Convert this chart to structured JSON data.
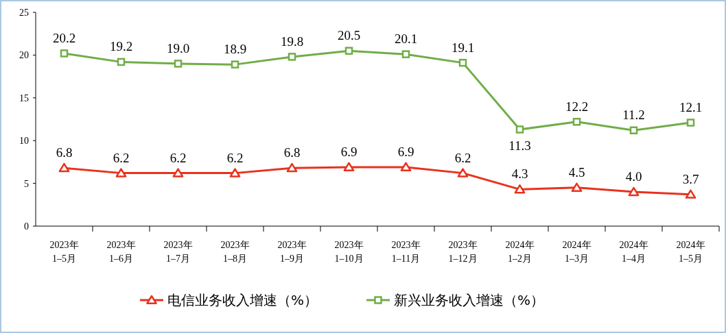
{
  "chart_data": {
    "type": "line",
    "categories": [
      "2023年\n1–5月",
      "2023年\n1–6月",
      "2023年\n1–7月",
      "2023年\n1–8月",
      "2023年\n1–9月",
      "2023年\n1–10月",
      "2023年\n1–11月",
      "2023年\n1–12月",
      "2024年\n1–2月",
      "2024年\n1–3月",
      "2024年\n1–4月",
      "2024年\n1–5月"
    ],
    "series": [
      {
        "name": "电信业务收入增速（%）",
        "color": "#e8321c",
        "marker": "triangle",
        "values": [
          6.8,
          6.2,
          6.2,
          6.2,
          6.8,
          6.9,
          6.9,
          6.2,
          4.3,
          4.5,
          4.0,
          3.7
        ],
        "value_labels": [
          "6.8",
          "6.2",
          "6.2",
          "6.2",
          "6.8",
          "6.9",
          "6.9",
          "6.2",
          "4.3",
          "4.5",
          "4.0",
          "3.7"
        ]
      },
      {
        "name": "新兴业务收入增速（%）",
        "color": "#70ad47",
        "marker": "square",
        "values": [
          20.2,
          19.2,
          19.0,
          18.9,
          19.8,
          20.5,
          20.1,
          19.1,
          11.3,
          12.2,
          11.2,
          12.1
        ],
        "value_labels": [
          "20.2",
          "19.2",
          "19.0",
          "18.9",
          "19.8",
          "20.5",
          "20.1",
          "19.1",
          "11.3",
          "12.2",
          "11.2",
          "12.1"
        ]
      }
    ],
    "ylim": [
      0,
      25
    ],
    "yticks": [
      0,
      5,
      10,
      15,
      20,
      25
    ],
    "grid": false,
    "legend": "bottom",
    "line_style": "solid"
  }
}
